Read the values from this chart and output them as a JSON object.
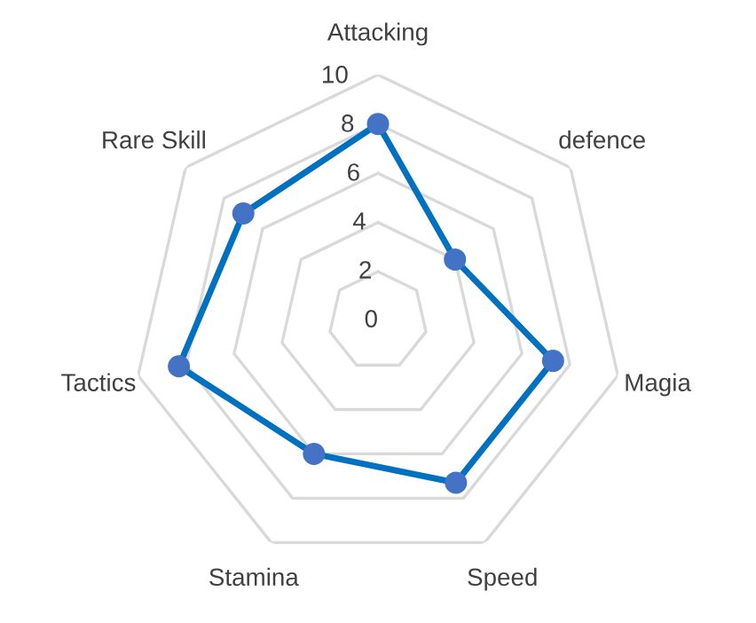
{
  "chart_data": {
    "type": "radar",
    "categories": [
      "Attacking",
      "defence",
      "Magia",
      "Speed",
      "Stamina",
      "Tactics",
      "Rare Skill"
    ],
    "series": [
      {
        "color": "#0070c0",
        "values": [
          8,
          4,
          7.3,
          7.3,
          6,
          8.3,
          7
        ]
      }
    ],
    "ylim": [
      0,
      10
    ],
    "yticks": [
      0,
      2,
      4,
      6,
      8,
      10
    ],
    "grid": true,
    "marker": "circle",
    "line_style": "solid"
  }
}
